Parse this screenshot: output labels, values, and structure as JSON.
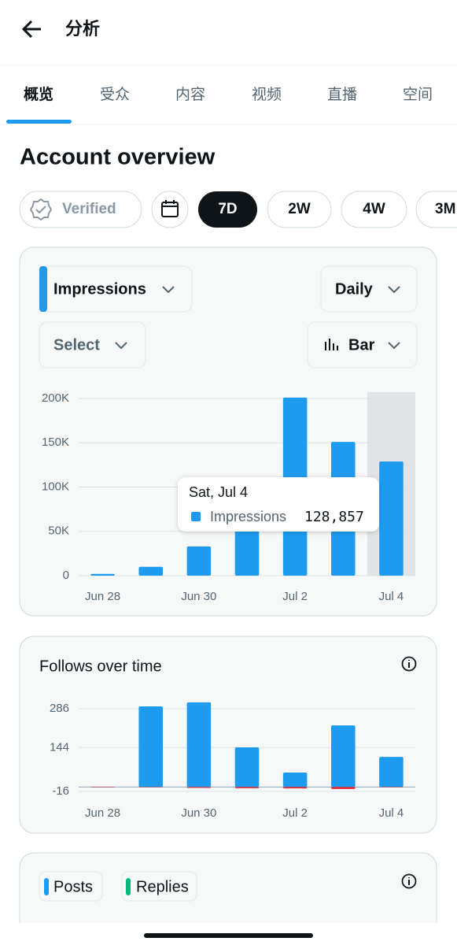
{
  "header": {
    "title": "分析"
  },
  "tabs": [
    "概览",
    "受众",
    "内容",
    "视频",
    "直播",
    "空间"
  ],
  "section_title": "Account overview",
  "filters": [
    "Verified",
    "7D",
    "2W",
    "4W",
    "3M"
  ],
  "impressions_card": {
    "metric": "Impressions",
    "period": "Daily",
    "select": "Select",
    "chart_style": "Bar",
    "tooltip_title": "Sat, Jul 4"
  },
  "follows_card": {
    "title": "Follows over time"
  },
  "posts_card": {
    "legend": [
      {
        "name": "Posts",
        "color": "#1d9bf0"
      },
      {
        "name": "Replies",
        "color": "#00ba7c"
      }
    ]
  },
  "chart_data": [
    {
      "type": "bar",
      "categories": [
        "Jun 28",
        null,
        "Jun 30",
        null,
        "Jul 2",
        null,
        "Jul 4"
      ],
      "series": [
        {
          "name": "Impressions",
          "color": "#1d9bf0",
          "values": [
            2000,
            10000,
            33000,
            70000,
            201000,
            151000,
            128857
          ],
          "value_labels": [
            null,
            null,
            null,
            null,
            null,
            null,
            "128,857"
          ]
        }
      ],
      "ylim": [
        0,
        200000
      ],
      "yticks": [
        0,
        {
          "value": 50000,
          "label": "50K"
        },
        {
          "value": 100000,
          "label": "100K"
        },
        {
          "value": 150000,
          "label": "150K"
        },
        {
          "value": 200000,
          "label": "200K"
        }
      ],
      "grid": true
    },
    {
      "type": "bar",
      "categories": [
        "Jun 28",
        null,
        "Jun 30",
        null,
        "Jul 2",
        null,
        "Jul 4"
      ],
      "series": [
        {
          "color": "#1d9bf0",
          "values": [
            0,
            294,
            309,
            145,
            53,
            225,
            110
          ]
        },
        {
          "color": "#f4212e",
          "values": [
            0,
            -1,
            -3,
            -4,
            -5,
            -7,
            -1
          ]
        }
      ],
      "ylim": [
        -16,
        320
      ],
      "yticks": [
        -16,
        144,
        286
      ],
      "grid": true
    }
  ]
}
